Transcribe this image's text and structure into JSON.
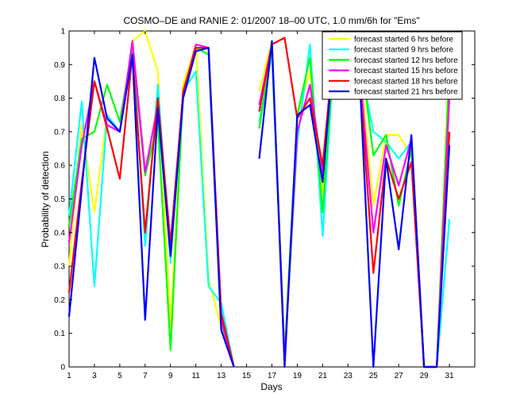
{
  "chart_data": {
    "type": "line",
    "title": "COSMO–DE and RANIE 2: 01/2007 18–00 UTC, 1.0 mm/6h for \"Ems\"",
    "xlabel": "Days",
    "ylabel": "Probability of detection",
    "xlim": [
      1,
      33
    ],
    "ylim": [
      0,
      1
    ],
    "xticks": [
      1,
      3,
      5,
      7,
      9,
      11,
      13,
      15,
      17,
      19,
      21,
      23,
      25,
      27,
      29,
      31
    ],
    "yticks": [
      0,
      0.1,
      0.2,
      0.3,
      0.4,
      0.5,
      0.6,
      0.7,
      0.8,
      0.9,
      1
    ],
    "grid": false,
    "legend_position": "top-right",
    "x": [
      1,
      2,
      3,
      4,
      5,
      6,
      7,
      8,
      9,
      10,
      11,
      12,
      13,
      14,
      15,
      16,
      17,
      18,
      19,
      20,
      21,
      22,
      23,
      24,
      25,
      26,
      27,
      28,
      29,
      30,
      31
    ],
    "series": [
      {
        "name": "forecast started 6 hrs before",
        "color": "#ffff00",
        "values": [
          0.3,
          0.72,
          0.46,
          0.75,
          0.7,
          0.97,
          1.0,
          0.88,
          0.12,
          0.84,
          0.96,
          0.26,
          0.12,
          0.0,
          null,
          0.82,
          0.97,
          0.05,
          0.75,
          0.88,
          0.52,
          1.0,
          0.97,
          0.88,
          0.48,
          0.69,
          0.69,
          0.63,
          0.0,
          0.0,
          0.94
        ]
      },
      {
        "name": "forecast started 9 hrs before",
        "color": "#00ffff",
        "values": [
          0.45,
          0.79,
          0.24,
          0.75,
          0.7,
          0.97,
          0.36,
          0.84,
          0.31,
          0.82,
          0.88,
          0.24,
          0.19,
          0.0,
          null,
          0.73,
          0.93,
          0.03,
          0.67,
          0.96,
          0.39,
          1.0,
          0.97,
          0.89,
          0.7,
          0.67,
          0.62,
          0.67,
          0.0,
          0.0,
          0.44
        ]
      },
      {
        "name": "forecast started 12 hrs before",
        "color": "#00ff00",
        "values": [
          0.42,
          0.68,
          0.7,
          0.84,
          0.73,
          0.95,
          0.57,
          0.73,
          0.05,
          0.82,
          0.95,
          0.93,
          0.13,
          0.0,
          null,
          0.71,
          0.95,
          0.03,
          0.75,
          0.92,
          0.46,
          1.0,
          0.98,
          0.93,
          0.63,
          0.69,
          0.48,
          0.65,
          0.0,
          0.0,
          0.9
        ]
      },
      {
        "name": "forecast started 15 hrs before",
        "color": "#ff00ff",
        "values": [
          0.37,
          0.66,
          0.85,
          0.72,
          0.7,
          0.97,
          0.58,
          0.78,
          0.37,
          0.81,
          0.96,
          0.95,
          0.14,
          0.0,
          null,
          0.78,
          0.96,
          0.02,
          0.7,
          0.84,
          0.58,
          1.0,
          0.97,
          0.85,
          0.4,
          0.66,
          0.54,
          0.68,
          0.0,
          0.0,
          0.81
        ]
      },
      {
        "name": "forecast started 18 hrs before",
        "color": "#ff0000",
        "values": [
          0.22,
          0.55,
          0.85,
          0.71,
          0.56,
          0.93,
          0.4,
          0.8,
          0.36,
          0.82,
          0.95,
          0.95,
          0.16,
          0.0,
          null,
          0.76,
          0.96,
          0.98,
          0.74,
          0.8,
          0.6,
          1.0,
          0.97,
          0.82,
          0.28,
          0.62,
          0.5,
          0.61,
          0.0,
          0.0,
          0.7
        ]
      },
      {
        "name": "forecast started 21 hrs before",
        "color": "#0000ff",
        "values": [
          0.15,
          0.53,
          0.92,
          0.74,
          0.7,
          0.93,
          0.14,
          0.77,
          0.33,
          0.8,
          0.94,
          0.95,
          0.11,
          0.0,
          null,
          0.62,
          0.97,
          0.0,
          0.75,
          0.78,
          0.55,
          1.0,
          0.96,
          0.8,
          0.0,
          0.62,
          0.35,
          0.69,
          0.0,
          0.0,
          0.66
        ]
      }
    ]
  }
}
